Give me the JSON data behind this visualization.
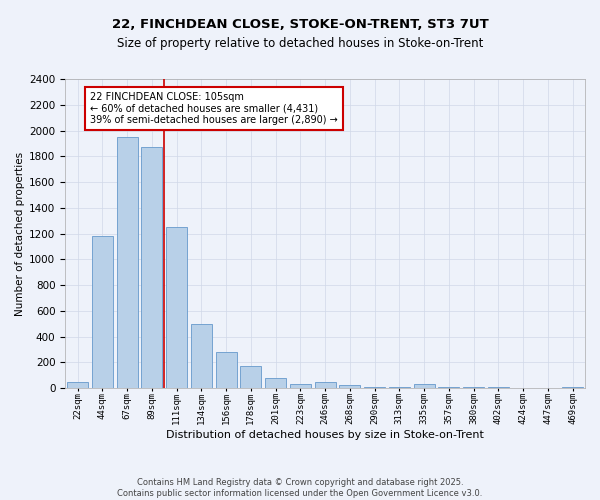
{
  "title_line1": "22, FINCHDEAN CLOSE, STOKE-ON-TRENT, ST3 7UT",
  "title_line2": "Size of property relative to detached houses in Stoke-on-Trent",
  "xlabel": "Distribution of detached houses by size in Stoke-on-Trent",
  "ylabel": "Number of detached properties",
  "categories": [
    "22sqm",
    "44sqm",
    "67sqm",
    "89sqm",
    "111sqm",
    "134sqm",
    "156sqm",
    "178sqm",
    "201sqm",
    "223sqm",
    "246sqm",
    "268sqm",
    "290sqm",
    "313sqm",
    "335sqm",
    "357sqm",
    "380sqm",
    "402sqm",
    "424sqm",
    "447sqm",
    "469sqm"
  ],
  "values": [
    50,
    1180,
    1950,
    1870,
    1250,
    500,
    280,
    170,
    75,
    35,
    50,
    20,
    10,
    10,
    30,
    10,
    5,
    5,
    2,
    2,
    5
  ],
  "bar_color": "#b8d0e8",
  "bar_edge_color": "#6699cc",
  "annotation_text": "22 FINCHDEAN CLOSE: 105sqm\n← 60% of detached houses are smaller (4,431)\n39% of semi-detached houses are larger (2,890) →",
  "annotation_box_color": "#ffffff",
  "annotation_box_edge_color": "#cc0000",
  "vline_color": "#cc0000",
  "ylim": [
    0,
    2400
  ],
  "yticks": [
    0,
    200,
    400,
    600,
    800,
    1000,
    1200,
    1400,
    1600,
    1800,
    2000,
    2200,
    2400
  ],
  "background_color": "#eef2fa",
  "grid_color": "#d0d8e8",
  "footer_line1": "Contains HM Land Registry data © Crown copyright and database right 2025.",
  "footer_line2": "Contains public sector information licensed under the Open Government Licence v3.0."
}
